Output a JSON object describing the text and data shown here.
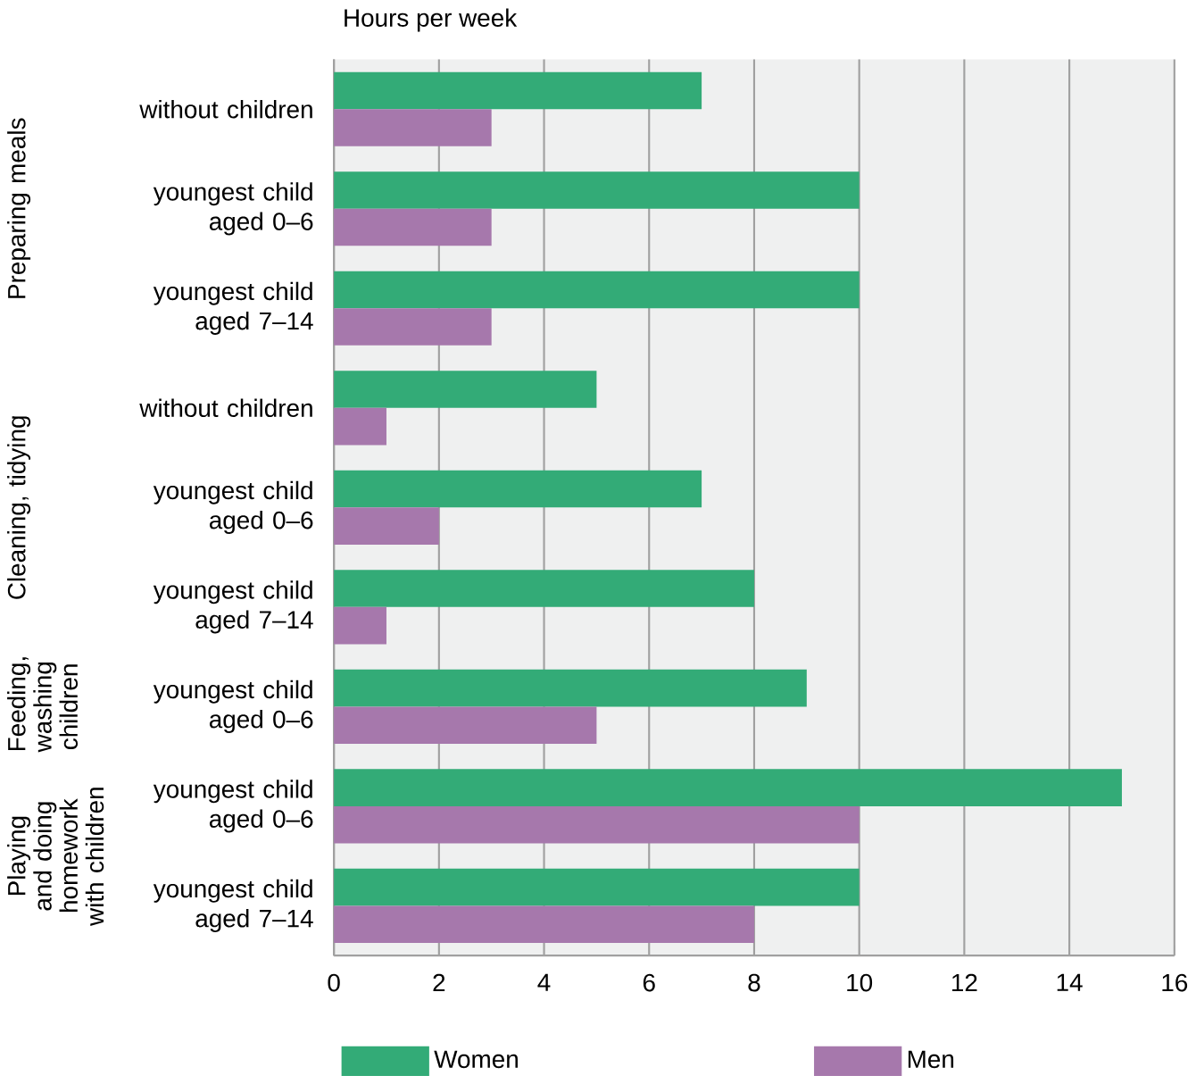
{
  "chart_data": {
    "type": "bar",
    "orientation": "horizontal",
    "xlabel": "Hours per week",
    "categories": [
      "without children",
      "youngest child aged 0–6",
      "youngest child aged 7–14",
      "without children",
      "youngest child aged 0–6",
      "youngest child aged 7–14",
      "youngest child aged 0–6",
      "youngest child aged 0–6",
      "youngest child aged 7–14"
    ],
    "series": [
      {
        "name": "Women",
        "color": "#33ab77",
        "values": [
          7,
          10,
          10,
          5,
          7,
          8,
          9,
          15,
          10
        ]
      },
      {
        "name": "Men",
        "color": "#a678ac",
        "values": [
          3,
          3,
          3,
          1,
          2,
          1,
          5,
          10,
          8
        ]
      }
    ],
    "xlim": [
      0,
      16
    ],
    "xticks": [
      0,
      2,
      4,
      6,
      8,
      10,
      12,
      14,
      16
    ],
    "grid": "x",
    "legend": "bottom",
    "annotations": [
      "Preparing meals",
      "Cleaning, tidying",
      "Feeding, washing children",
      "Playing and doing homework with children"
    ]
  }
}
